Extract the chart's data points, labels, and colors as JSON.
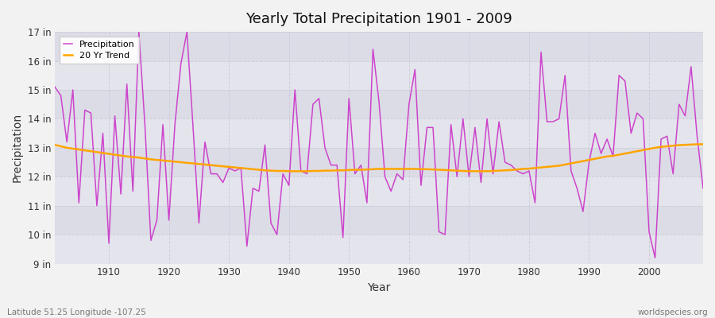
{
  "title": "Yearly Total Precipitation 1901 - 2009",
  "xlabel": "Year",
  "ylabel": "Precipitation",
  "footnote_left": "Latitude 51.25 Longitude -107.25",
  "footnote_right": "worldspecies.org",
  "legend_labels": [
    "Precipitation",
    "20 Yr Trend"
  ],
  "precip_color": "#CC44CC",
  "trend_color": "#FFA500",
  "fig_bg_color": "#F0F0F0",
  "plot_bg_color": "#F0F0F4",
  "band_colors": [
    "#E8E8F0",
    "#DCDCE8"
  ],
  "ylim": [
    9,
    17
  ],
  "yticks": [
    9,
    10,
    11,
    12,
    13,
    14,
    15,
    16,
    17
  ],
  "xlim": [
    1901,
    2009
  ],
  "xticks": [
    1910,
    1920,
    1930,
    1940,
    1950,
    1960,
    1970,
    1980,
    1990,
    2000
  ],
  "years": [
    1901,
    1902,
    1903,
    1904,
    1905,
    1906,
    1907,
    1908,
    1909,
    1910,
    1911,
    1912,
    1913,
    1914,
    1915,
    1916,
    1917,
    1918,
    1919,
    1920,
    1921,
    1922,
    1923,
    1924,
    1925,
    1926,
    1927,
    1928,
    1929,
    1930,
    1931,
    1932,
    1933,
    1934,
    1935,
    1936,
    1937,
    1938,
    1939,
    1940,
    1941,
    1942,
    1943,
    1944,
    1945,
    1946,
    1947,
    1948,
    1949,
    1950,
    1951,
    1952,
    1953,
    1954,
    1955,
    1956,
    1957,
    1958,
    1959,
    1960,
    1961,
    1962,
    1963,
    1964,
    1965,
    1966,
    1967,
    1968,
    1969,
    1970,
    1971,
    1972,
    1973,
    1974,
    1975,
    1976,
    1977,
    1978,
    1979,
    1980,
    1981,
    1982,
    1983,
    1984,
    1985,
    1986,
    1987,
    1988,
    1989,
    1990,
    1991,
    1992,
    1993,
    1994,
    1995,
    1996,
    1997,
    1998,
    1999,
    2000,
    2001,
    2002,
    2003,
    2004,
    2005,
    2006,
    2007,
    2008,
    2009
  ],
  "precipitation": [
    15.1,
    14.8,
    13.2,
    15.0,
    11.1,
    14.3,
    14.2,
    11.0,
    13.5,
    9.7,
    14.1,
    11.4,
    15.2,
    11.5,
    17.0,
    13.8,
    9.8,
    10.5,
    13.8,
    10.5,
    13.8,
    15.9,
    17.0,
    13.8,
    10.4,
    13.2,
    12.1,
    12.1,
    11.8,
    12.3,
    12.2,
    12.3,
    9.6,
    11.6,
    11.5,
    13.1,
    10.4,
    10.0,
    12.1,
    11.7,
    15.0,
    12.2,
    12.1,
    14.5,
    14.7,
    13.0,
    12.4,
    12.4,
    9.9,
    14.7,
    12.1,
    12.4,
    11.1,
    16.4,
    14.6,
    12.0,
    11.5,
    12.1,
    11.9,
    14.5,
    15.7,
    11.7,
    13.7,
    13.7,
    10.1,
    10.0,
    13.8,
    12.0,
    14.0,
    12.0,
    13.7,
    11.8,
    14.0,
    12.1,
    13.9,
    12.5,
    12.4,
    12.2,
    12.1,
    12.2,
    11.1,
    16.3,
    13.9,
    13.9,
    14.0,
    15.5,
    12.2,
    11.6,
    10.8,
    12.5,
    13.5,
    12.8,
    13.3,
    12.7,
    15.5,
    15.3,
    13.5,
    14.2,
    14.0,
    10.1,
    9.2,
    13.3,
    13.4,
    12.1,
    14.5,
    14.1,
    15.8,
    13.4,
    11.6
  ],
  "trend": [
    13.1,
    13.05,
    13.0,
    12.97,
    12.94,
    12.91,
    12.88,
    12.85,
    12.82,
    12.79,
    12.76,
    12.73,
    12.7,
    12.68,
    12.66,
    12.63,
    12.6,
    12.58,
    12.56,
    12.54,
    12.52,
    12.5,
    12.48,
    12.46,
    12.44,
    12.42,
    12.4,
    12.38,
    12.36,
    12.34,
    12.32,
    12.3,
    12.28,
    12.26,
    12.24,
    12.22,
    12.21,
    12.2,
    12.2,
    12.19,
    12.19,
    12.19,
    12.19,
    12.2,
    12.2,
    12.21,
    12.21,
    12.22,
    12.22,
    12.23,
    12.24,
    12.24,
    12.25,
    12.26,
    12.27,
    12.27,
    12.27,
    12.27,
    12.27,
    12.27,
    12.27,
    12.26,
    12.26,
    12.25,
    12.24,
    12.23,
    12.22,
    12.21,
    12.2,
    12.19,
    12.19,
    12.19,
    12.19,
    12.2,
    12.21,
    12.22,
    12.23,
    12.25,
    12.27,
    12.28,
    12.3,
    12.32,
    12.34,
    12.36,
    12.38,
    12.42,
    12.46,
    12.5,
    12.54,
    12.58,
    12.62,
    12.66,
    12.7,
    12.72,
    12.76,
    12.8,
    12.84,
    12.88,
    12.92,
    12.96,
    13.0,
    13.03,
    13.05,
    13.07,
    13.09,
    13.1,
    13.11,
    13.12,
    13.12
  ]
}
